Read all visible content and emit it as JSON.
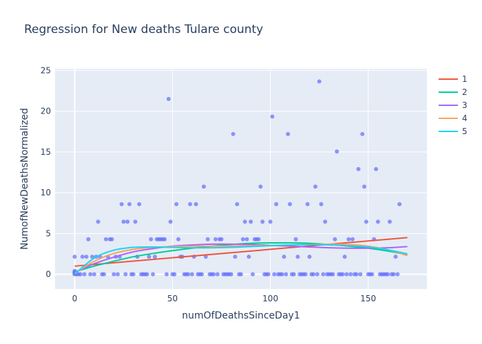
{
  "chart_data": {
    "type": "scatter",
    "title": "Regression for New deaths Tulare county",
    "xlabel": "numOfDeathsSinceDay1",
    "ylabel": "NumofNewDeathsNormalized",
    "xlim": [
      -10,
      180
    ],
    "ylim": [
      -1.8,
      25.2
    ],
    "xticks": [
      0,
      50,
      100,
      150
    ],
    "yticks": [
      0,
      5,
      10,
      15,
      20,
      25
    ],
    "grid": true,
    "legend_position": "right",
    "colors": {
      "points": "#636efa",
      "series": [
        "#EF553B",
        "#00cc96",
        "#ab63fa",
        "#FFA15A",
        "#19d3f3"
      ],
      "plot_bg": "#e5ecf6"
    },
    "points": [
      [
        0,
        0
      ],
      [
        0,
        0.1
      ],
      [
        0,
        0.2
      ],
      [
        0,
        0.3
      ],
      [
        0,
        0.4
      ],
      [
        0,
        2.15
      ],
      [
        1,
        0
      ],
      [
        2,
        0
      ],
      [
        3,
        0
      ],
      [
        4,
        2.15
      ],
      [
        5,
        0
      ],
      [
        6,
        2.15
      ],
      [
        7,
        4.3
      ],
      [
        8,
        0
      ],
      [
        9,
        2.15
      ],
      [
        10,
        0
      ],
      [
        11,
        2.15
      ],
      [
        12,
        6.45
      ],
      [
        13,
        2.15
      ],
      [
        14,
        0
      ],
      [
        15,
        0
      ],
      [
        16,
        4.3
      ],
      [
        17,
        2.15
      ],
      [
        18,
        4.3
      ],
      [
        19,
        4.3
      ],
      [
        20,
        0
      ],
      [
        21,
        2.15
      ],
      [
        22,
        0
      ],
      [
        23,
        2.15
      ],
      [
        24,
        8.6
      ],
      [
        25,
        6.45
      ],
      [
        26,
        0
      ],
      [
        27,
        6.45
      ],
      [
        28,
        8.6
      ],
      [
        29,
        0
      ],
      [
        30,
        0
      ],
      [
        31,
        6.45
      ],
      [
        32,
        2.15
      ],
      [
        33,
        8.6
      ],
      [
        34,
        0
      ],
      [
        35,
        0
      ],
      [
        36,
        0
      ],
      [
        37,
        0
      ],
      [
        38,
        2.15
      ],
      [
        39,
        4.3
      ],
      [
        40,
        0
      ],
      [
        41,
        2.15
      ],
      [
        42,
        4.3
      ],
      [
        43,
        4.3
      ],
      [
        44,
        4.3
      ],
      [
        45,
        4.3
      ],
      [
        46,
        4.3
      ],
      [
        47,
        0
      ],
      [
        48,
        21.5
      ],
      [
        49,
        6.45
      ],
      [
        50,
        0
      ],
      [
        51,
        0
      ],
      [
        52,
        8.6
      ],
      [
        53,
        4.3
      ],
      [
        54,
        2.15
      ],
      [
        55,
        2.15
      ],
      [
        56,
        0
      ],
      [
        57,
        0
      ],
      [
        58,
        0
      ],
      [
        59,
        8.6
      ],
      [
        60,
        0
      ],
      [
        61,
        2.15
      ],
      [
        62,
        8.6
      ],
      [
        63,
        0
      ],
      [
        64,
        0
      ],
      [
        65,
        0
      ],
      [
        66,
        10.75
      ],
      [
        67,
        2.15
      ],
      [
        68,
        4.3
      ],
      [
        69,
        0
      ],
      [
        70,
        0
      ],
      [
        71,
        0
      ],
      [
        72,
        4.3
      ],
      [
        73,
        0
      ],
      [
        74,
        4.3
      ],
      [
        75,
        4.3
      ],
      [
        76,
        0
      ],
      [
        77,
        0
      ],
      [
        78,
        0
      ],
      [
        79,
        0
      ],
      [
        80,
        0
      ],
      [
        81,
        17.2
      ],
      [
        82,
        2.15
      ],
      [
        83,
        8.6
      ],
      [
        84,
        0
      ],
      [
        85,
        0
      ],
      [
        86,
        4.3
      ],
      [
        87,
        6.45
      ],
      [
        88,
        4.3
      ],
      [
        89,
        2.15
      ],
      [
        90,
        6.45
      ],
      [
        91,
        0
      ],
      [
        92,
        4.3
      ],
      [
        93,
        4.3
      ],
      [
        94,
        4.3
      ],
      [
        95,
        10.75
      ],
      [
        96,
        6.45
      ],
      [
        97,
        0
      ],
      [
        98,
        0
      ],
      [
        99,
        0
      ],
      [
        100,
        6.45
      ],
      [
        101,
        19.35
      ],
      [
        102,
        0
      ],
      [
        103,
        8.6
      ],
      [
        104,
        0
      ],
      [
        105,
        0
      ],
      [
        106,
        0
      ],
      [
        107,
        2.15
      ],
      [
        108,
        0
      ],
      [
        109,
        17.2
      ],
      [
        110,
        8.6
      ],
      [
        111,
        0
      ],
      [
        112,
        0
      ],
      [
        113,
        4.3
      ],
      [
        114,
        2.15
      ],
      [
        115,
        0
      ],
      [
        116,
        0
      ],
      [
        117,
        0
      ],
      [
        118,
        0
      ],
      [
        119,
        8.6
      ],
      [
        120,
        2.15
      ],
      [
        121,
        0
      ],
      [
        122,
        0
      ],
      [
        123,
        10.75
      ],
      [
        124,
        0
      ],
      [
        125,
        23.65
      ],
      [
        126,
        8.6
      ],
      [
        127,
        0
      ],
      [
        128,
        6.45
      ],
      [
        129,
        0
      ],
      [
        130,
        0
      ],
      [
        131,
        0
      ],
      [
        132,
        0
      ],
      [
        133,
        4.3
      ],
      [
        134,
        15.05
      ],
      [
        135,
        0
      ],
      [
        136,
        0
      ],
      [
        137,
        0
      ],
      [
        138,
        2.15
      ],
      [
        139,
        0
      ],
      [
        140,
        4.3
      ],
      [
        141,
        0
      ],
      [
        142,
        4.3
      ],
      [
        143,
        0
      ],
      [
        144,
        0
      ],
      [
        145,
        12.9
      ],
      [
        146,
        0
      ],
      [
        147,
        17.2
      ],
      [
        148,
        10.75
      ],
      [
        149,
        6.45
      ],
      [
        150,
        0
      ],
      [
        151,
        0
      ],
      [
        152,
        0
      ],
      [
        153,
        4.3
      ],
      [
        154,
        12.9
      ],
      [
        155,
        6.45
      ],
      [
        156,
        0
      ],
      [
        157,
        0
      ],
      [
        158,
        0
      ],
      [
        159,
        0
      ],
      [
        160,
        0
      ],
      [
        161,
        6.45
      ],
      [
        162,
        0
      ],
      [
        163,
        0
      ],
      [
        164,
        2.15
      ],
      [
        165,
        0
      ],
      [
        166,
        8.6
      ]
    ],
    "series": [
      {
        "name": "1",
        "x": [
          0,
          170
        ],
        "y": [
          1.0,
          4.5
        ]
      },
      {
        "name": "2",
        "x": [
          0,
          10,
          20,
          30,
          40,
          50,
          60,
          70,
          80,
          90,
          100,
          110,
          120,
          130,
          140,
          150,
          160,
          170
        ],
        "y": [
          0.3,
          1.0,
          1.6,
          2.15,
          2.55,
          2.9,
          3.2,
          3.45,
          3.65,
          3.8,
          3.85,
          3.85,
          3.8,
          3.65,
          3.45,
          3.2,
          2.85,
          2.4
        ]
      },
      {
        "name": "3",
        "x": [
          0,
          10,
          20,
          30,
          40,
          50,
          60,
          70,
          80,
          90,
          100,
          110,
          120,
          130,
          140,
          150,
          160,
          170
        ],
        "y": [
          0.2,
          1.3,
          2.1,
          2.75,
          3.15,
          3.45,
          3.6,
          3.7,
          3.7,
          3.65,
          3.55,
          3.45,
          3.35,
          3.25,
          3.2,
          3.2,
          3.25,
          3.4
        ]
      },
      {
        "name": "4",
        "x": [
          0,
          10,
          20,
          30,
          40,
          50,
          60,
          70,
          80,
          90,
          100,
          110,
          120,
          130,
          140,
          150,
          160,
          170
        ],
        "y": [
          0.1,
          1.6,
          2.55,
          3.05,
          3.3,
          3.4,
          3.45,
          3.45,
          3.45,
          3.5,
          3.55,
          3.6,
          3.65,
          3.7,
          3.65,
          3.45,
          3.0,
          2.3
        ]
      },
      {
        "name": "5",
        "x": [
          0,
          10,
          20,
          30,
          40,
          50,
          60,
          70,
          80,
          90,
          100,
          110,
          120,
          130,
          140,
          150,
          160,
          170
        ],
        "y": [
          0.0,
          2.0,
          2.95,
          3.3,
          3.35,
          3.3,
          3.25,
          3.25,
          3.3,
          3.4,
          3.5,
          3.6,
          3.65,
          3.6,
          3.5,
          3.35,
          3.0,
          2.5
        ]
      }
    ]
  }
}
